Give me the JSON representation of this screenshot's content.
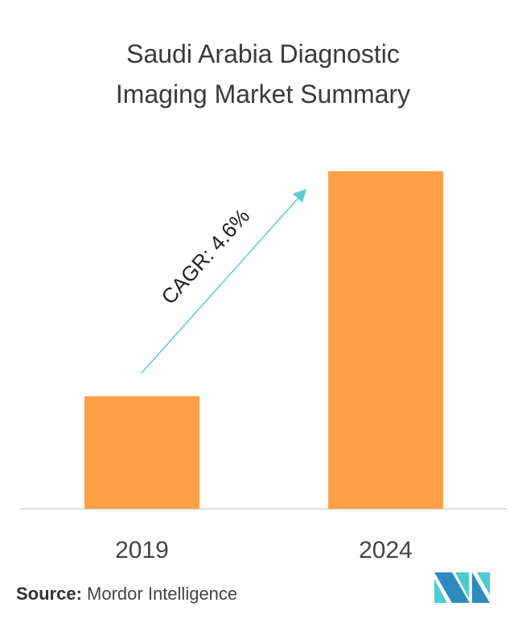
{
  "title_lines": [
    "Saudi Arabia Diagnostic",
    "Imaging Market Summary"
  ],
  "chart_data": {
    "type": "bar",
    "title": "Saudi Arabia Diagnostic Imaging Market Summary",
    "categories": [
      "2019",
      "2024"
    ],
    "values": [
      1,
      3
    ],
    "xlabel": "",
    "ylabel": "",
    "grid": false,
    "bar_color": "#ffa047",
    "annotation": {
      "text": "CAGR: 4.6%",
      "arrow_color": "#5ccad0"
    }
  },
  "source": {
    "label": "Source:",
    "value": "Mordor Intelligence"
  },
  "logo": {
    "colors": [
      "#2e8bc0",
      "#4ccbd0"
    ]
  }
}
